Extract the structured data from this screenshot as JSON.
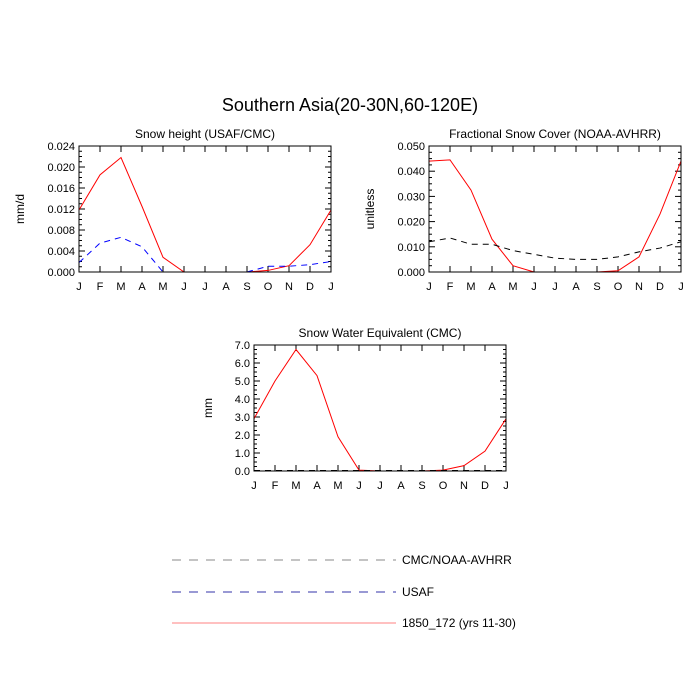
{
  "title": "Southern Asia(20-30N,60-120E)",
  "months": [
    "J",
    "F",
    "M",
    "A",
    "M",
    "J",
    "J",
    "A",
    "S",
    "O",
    "N",
    "D",
    "J"
  ],
  "colors": {
    "model": "#ff0000",
    "usaf": "#0000ff",
    "obs": "#000000"
  },
  "legend": [
    {
      "key": "obs",
      "label": "CMC/NOAA-AVHRR",
      "style": "dashed-gray"
    },
    {
      "key": "usaf",
      "label": "USAF",
      "style": "dashed-blue"
    },
    {
      "key": "model",
      "label": "1850_172 (yrs 11-30)",
      "style": "solid-red"
    }
  ],
  "chart_data": [
    {
      "type": "line",
      "title": "Snow height (USAF/CMC)",
      "ylabel": "mm/d",
      "ylim": [
        0,
        0.024
      ],
      "yticks": [
        "0.000",
        "0.004",
        "0.008",
        "0.012",
        "0.016",
        "0.020",
        "0.024"
      ],
      "series": [
        {
          "key": "model",
          "values": [
            0.0118,
            0.0185,
            0.0218,
            0.0125,
            0.0028,
            0.0,
            0.0,
            0.0,
            0.0,
            0.0003,
            0.0012,
            0.0052,
            0.0118
          ]
        },
        {
          "key": "usaf",
          "values": [
            0.0018,
            0.0055,
            0.0066,
            0.0048,
            0.0,
            null,
            null,
            null,
            0.0,
            0.0011,
            0.0011,
            0.0014,
            0.002
          ]
        }
      ]
    },
    {
      "type": "line",
      "title": "Fractional Snow Cover (NOAA-AVHRR)",
      "ylabel": "unitless",
      "ylim": [
        0,
        0.05
      ],
      "yticks": [
        "0.000",
        "0.010",
        "0.020",
        "0.030",
        "0.040",
        "0.050"
      ],
      "series": [
        {
          "key": "model",
          "values": [
            0.044,
            0.0445,
            0.0325,
            0.013,
            0.0025,
            0.0,
            0.0,
            0.0,
            0.0,
            0.0005,
            0.006,
            0.023,
            0.044
          ]
        },
        {
          "key": "obs",
          "values": [
            0.012,
            0.0135,
            0.011,
            0.011,
            0.0085,
            0.007,
            0.0055,
            0.005,
            0.005,
            0.006,
            0.008,
            0.0095,
            0.012
          ]
        }
      ]
    },
    {
      "type": "line",
      "title": "Snow Water Equivalent (CMC)",
      "ylabel": "mm",
      "ylim": [
        0,
        7
      ],
      "yticks": [
        "0.0",
        "1.0",
        "2.0",
        "3.0",
        "4.0",
        "5.0",
        "6.0",
        "7.0"
      ],
      "series": [
        {
          "key": "model",
          "values": [
            2.9,
            5.0,
            6.75,
            5.3,
            1.9,
            0.05,
            0.0,
            0.0,
            0.0,
            0.05,
            0.3,
            1.1,
            2.9
          ]
        },
        {
          "key": "obs",
          "values": [
            0.03,
            0.03,
            0.03,
            0.03,
            0.03,
            0.03,
            0.03,
            0.03,
            0.03,
            0.03,
            0.03,
            0.03,
            0.03
          ]
        }
      ]
    }
  ]
}
